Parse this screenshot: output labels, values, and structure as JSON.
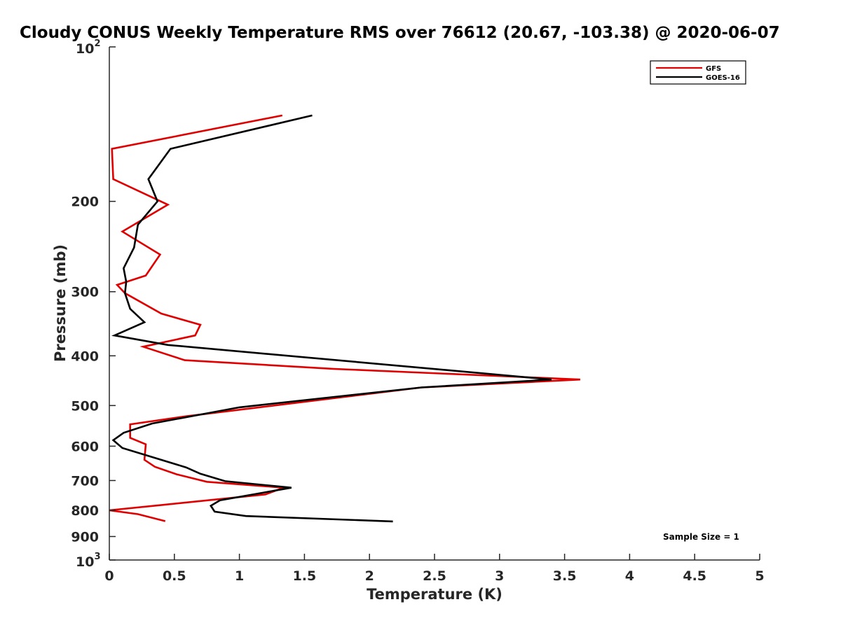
{
  "chart_data": {
    "type": "line",
    "title": "Cloudy CONUS Weekly Temperature RMS over 76612 (20.67, -103.38) @ 2020-06-07",
    "xlabel": "Temperature (K)",
    "ylabel": "Pressure (mb)",
    "xlim": [
      0,
      5
    ],
    "ylim": [
      100,
      1000
    ],
    "yscale": "log",
    "y_reversed": true,
    "legend_position": "top-right",
    "x_ticks": [
      {
        "value": 0,
        "label": "0"
      },
      {
        "value": 0.5,
        "label": "0.5"
      },
      {
        "value": 1,
        "label": "1"
      },
      {
        "value": 1.5,
        "label": "1.5"
      },
      {
        "value": 2,
        "label": "2"
      },
      {
        "value": 2.5,
        "label": "2.5"
      },
      {
        "value": 3,
        "label": "3"
      },
      {
        "value": 3.5,
        "label": "3.5"
      },
      {
        "value": 4,
        "label": "4"
      },
      {
        "value": 4.5,
        "label": "4.5"
      },
      {
        "value": 5,
        "label": "5"
      }
    ],
    "y_ticks": [
      {
        "value": 100,
        "base": "10",
        "exp": "2"
      },
      {
        "value": 200,
        "label": "200"
      },
      {
        "value": 300,
        "label": "300"
      },
      {
        "value": 400,
        "label": "400"
      },
      {
        "value": 500,
        "label": "500"
      },
      {
        "value": 600,
        "label": "600"
      },
      {
        "value": 700,
        "label": "700"
      },
      {
        "value": 800,
        "label": "800"
      },
      {
        "value": 900,
        "label": "900"
      },
      {
        "value": 1000,
        "base": "10",
        "exp": "3"
      }
    ],
    "series": [
      {
        "name": "GFS",
        "color": "#e00000",
        "points": [
          {
            "x": 1.33,
            "y": 136
          },
          {
            "x": 0.02,
            "y": 158
          },
          {
            "x": 0.03,
            "y": 181
          },
          {
            "x": 0.45,
            "y": 203
          },
          {
            "x": 0.1,
            "y": 229
          },
          {
            "x": 0.39,
            "y": 254
          },
          {
            "x": 0.28,
            "y": 279
          },
          {
            "x": 0.06,
            "y": 291
          },
          {
            "x": 0.12,
            "y": 302
          },
          {
            "x": 0.4,
            "y": 331
          },
          {
            "x": 0.7,
            "y": 348
          },
          {
            "x": 0.66,
            "y": 365
          },
          {
            "x": 0.26,
            "y": 384
          },
          {
            "x": 0.58,
            "y": 408
          },
          {
            "x": 1.72,
            "y": 424
          },
          {
            "x": 3.62,
            "y": 445
          },
          {
            "x": 2.4,
            "y": 461
          },
          {
            "x": 0.58,
            "y": 525
          },
          {
            "x": 0.16,
            "y": 544
          },
          {
            "x": 0.16,
            "y": 578
          },
          {
            "x": 0.28,
            "y": 595
          },
          {
            "x": 0.27,
            "y": 638
          },
          {
            "x": 0.35,
            "y": 658
          },
          {
            "x": 0.52,
            "y": 681
          },
          {
            "x": 0.75,
            "y": 704
          },
          {
            "x": 1.34,
            "y": 723
          },
          {
            "x": 1.2,
            "y": 745
          },
          {
            "x": 0.43,
            "y": 780
          },
          {
            "x": 0.0,
            "y": 800
          },
          {
            "x": 0.22,
            "y": 814
          },
          {
            "x": 0.43,
            "y": 840
          }
        ]
      },
      {
        "name": "GOES-16",
        "color": "#000000",
        "points": [
          {
            "x": 1.56,
            "y": 136
          },
          {
            "x": 0.47,
            "y": 158
          },
          {
            "x": 0.3,
            "y": 181
          },
          {
            "x": 0.37,
            "y": 200
          },
          {
            "x": 0.22,
            "y": 222
          },
          {
            "x": 0.19,
            "y": 246
          },
          {
            "x": 0.11,
            "y": 270
          },
          {
            "x": 0.13,
            "y": 287
          },
          {
            "x": 0.12,
            "y": 302
          },
          {
            "x": 0.16,
            "y": 324
          },
          {
            "x": 0.27,
            "y": 344
          },
          {
            "x": 0.04,
            "y": 365
          },
          {
            "x": 0.45,
            "y": 381
          },
          {
            "x": 3.4,
            "y": 445
          },
          {
            "x": 2.4,
            "y": 461
          },
          {
            "x": 1.0,
            "y": 504
          },
          {
            "x": 0.33,
            "y": 542
          },
          {
            "x": 0.11,
            "y": 565
          },
          {
            "x": 0.03,
            "y": 584
          },
          {
            "x": 0.1,
            "y": 605
          },
          {
            "x": 0.59,
            "y": 660
          },
          {
            "x": 0.7,
            "y": 679
          },
          {
            "x": 0.89,
            "y": 702
          },
          {
            "x": 1.4,
            "y": 723
          },
          {
            "x": 0.85,
            "y": 765
          },
          {
            "x": 0.78,
            "y": 784
          },
          {
            "x": 0.81,
            "y": 805
          },
          {
            "x": 1.05,
            "y": 821
          },
          {
            "x": 2.18,
            "y": 841
          }
        ]
      }
    ],
    "annotation": "Sample Size = 1"
  }
}
